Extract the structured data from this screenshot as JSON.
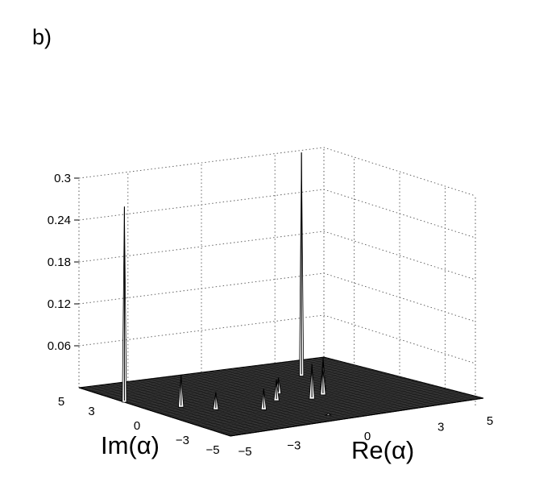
{
  "chart_data": {
    "type": "surface3d",
    "panel_label": "b)",
    "xlabel": "Re(α)",
    "ylabel": "Im(α)",
    "zlabel": "",
    "xlim": [
      -5,
      5
    ],
    "ylim": [
      -5,
      5
    ],
    "zlim": [
      0,
      0.3
    ],
    "x_ticks": [
      -5,
      -3,
      0,
      3,
      5
    ],
    "y_ticks": [
      5,
      3,
      0,
      -3,
      -5
    ],
    "z_ticks": [
      0.06,
      0.12,
      0.18,
      0.24,
      0.3
    ],
    "x_tick_labels": [
      "−5",
      "−3",
      "0",
      "3",
      "5"
    ],
    "y_tick_labels": [
      "5",
      "3",
      "0",
      "−3",
      "−5"
    ],
    "z_tick_labels": [
      "0.06",
      "0.12",
      "0.18",
      "0.24",
      "0.3"
    ],
    "grid": true,
    "peaks": [
      {
        "re": -5.0,
        "im": 2.0,
        "z": 0.28
      },
      {
        "re": 2.6,
        "im": 2.6,
        "z": 0.32
      },
      {
        "re": -3.8,
        "im": 0.2,
        "z": 0.046
      },
      {
        "re": -3.0,
        "im": -0.8,
        "z": 0.025
      },
      {
        "re": -1.6,
        "im": -1.7,
        "z": 0.03
      },
      {
        "re": -0.4,
        "im": -0.6,
        "z": 0.03
      },
      {
        "re": 0.3,
        "im": 0.4,
        "z": 0.023
      },
      {
        "re": 0.8,
        "im": -1.0,
        "z": 0.05
      },
      {
        "re": 1.5,
        "im": -0.6,
        "z": 0.04
      },
      {
        "re": 2.0,
        "im": 0.2,
        "z": 0.045
      },
      {
        "re": -0.2,
        "im": -3.7,
        "z": 0.002
      }
    ]
  }
}
